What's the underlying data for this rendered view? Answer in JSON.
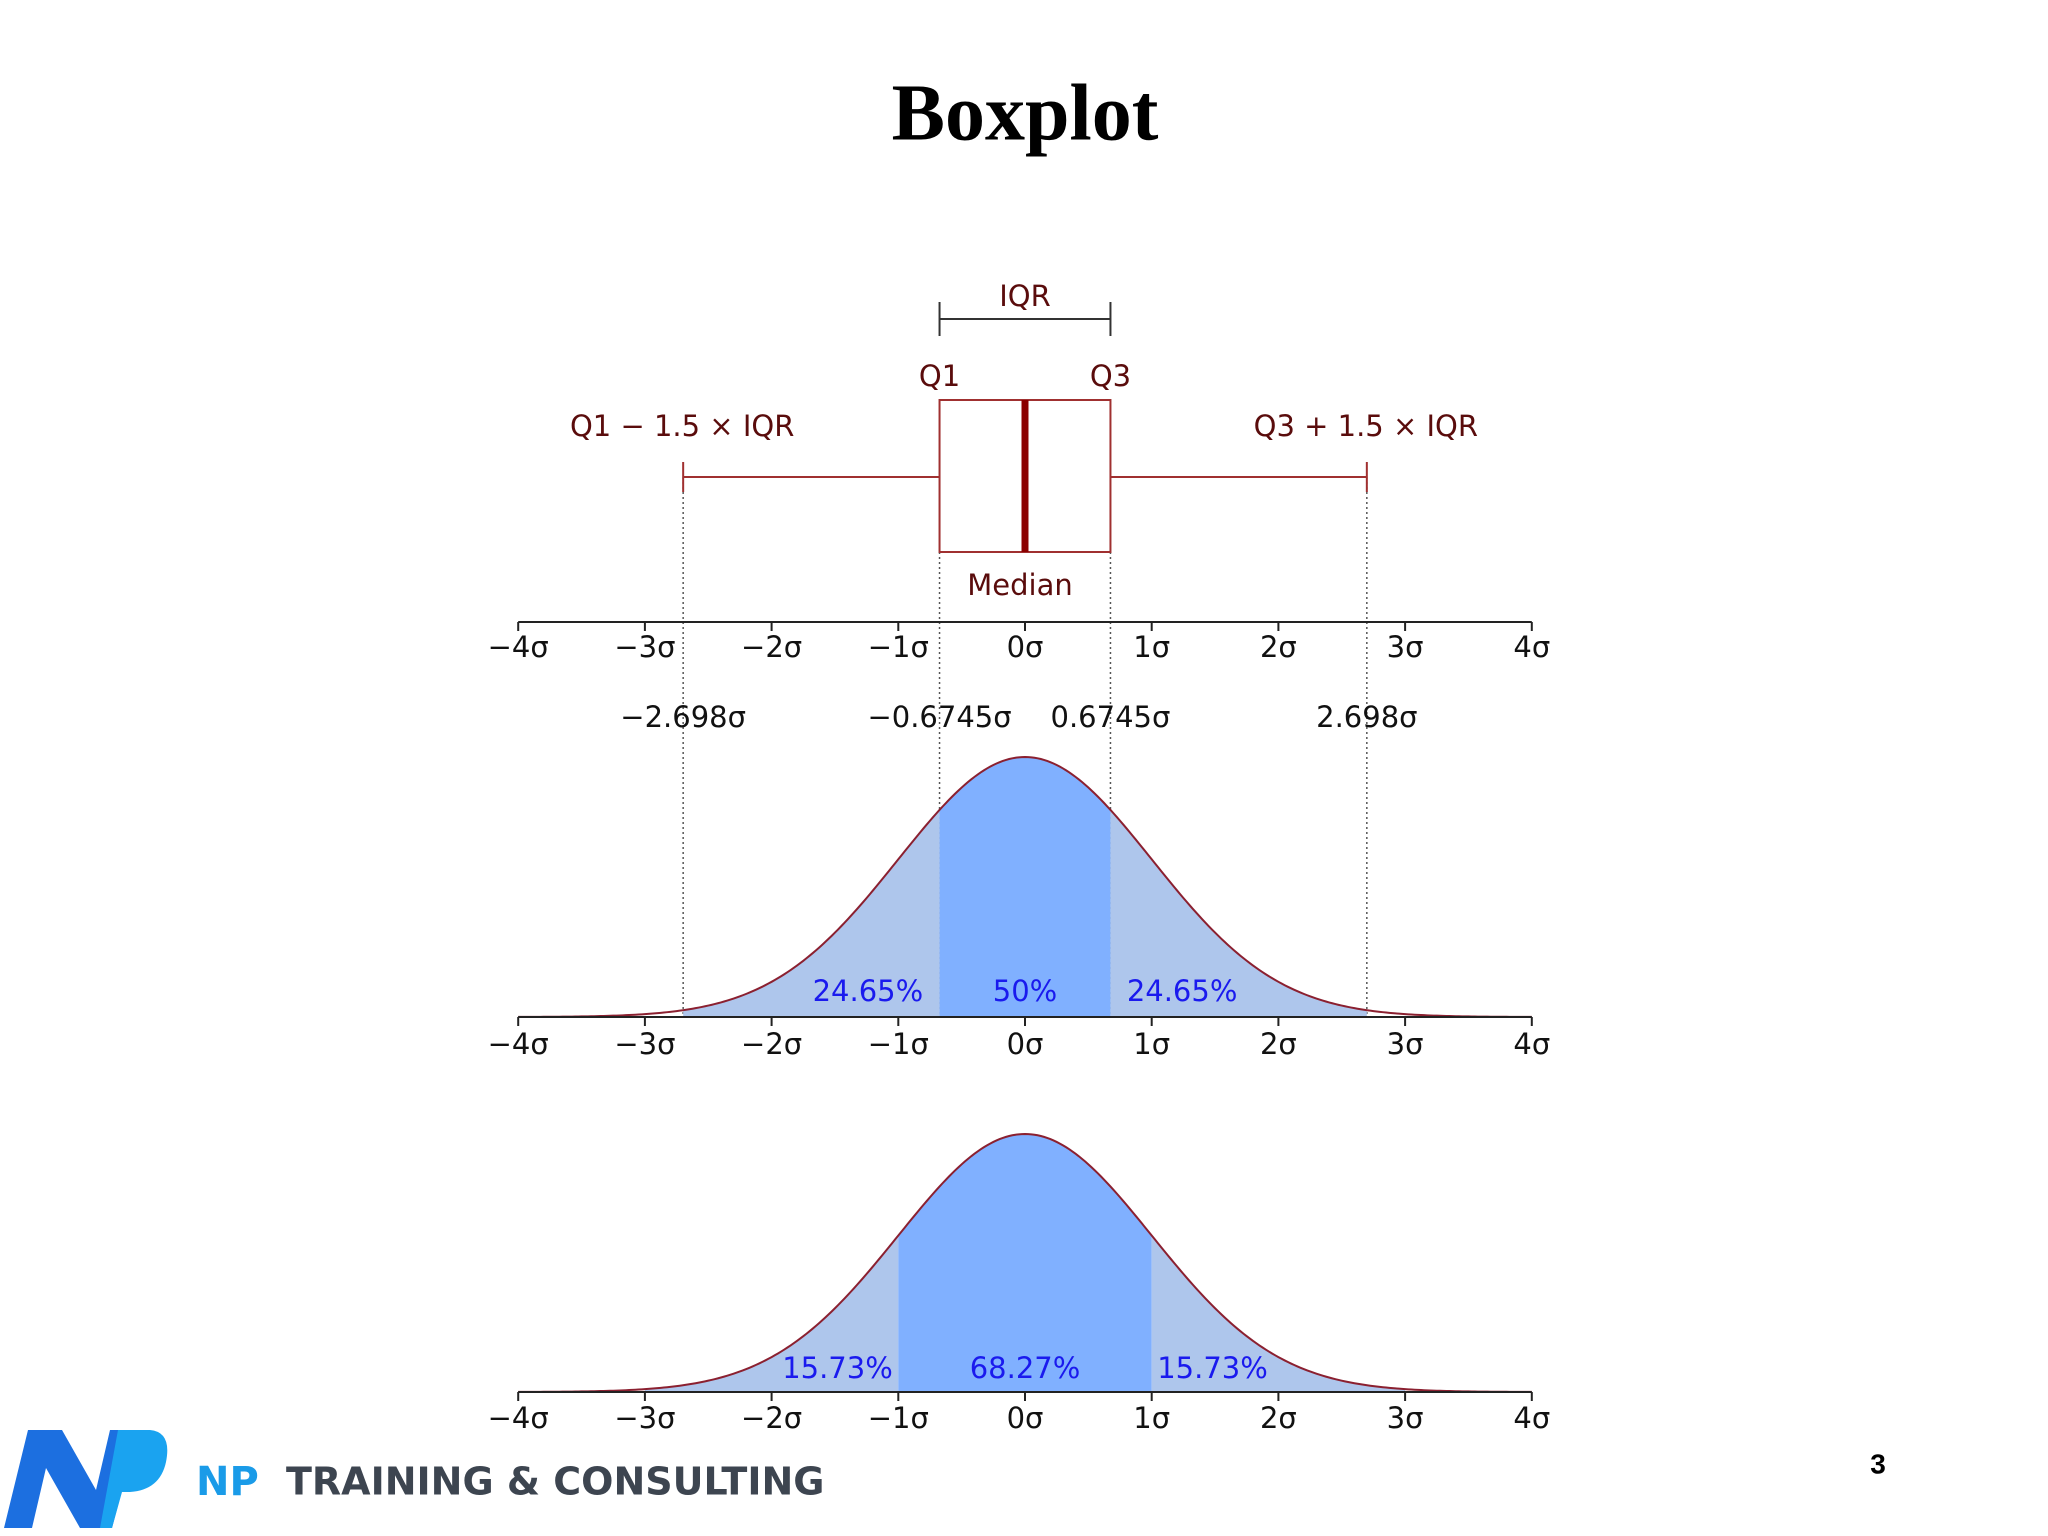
{
  "title": "Boxplot",
  "page_number": "3",
  "brand": "NP",
  "tagline": "TRAINING & CONSULTING",
  "boxplot": {
    "iqr_label": "IQR",
    "q1_label": "Q1",
    "q3_label": "Q3",
    "lower_fence_label": "Q1 − 1.5 × IQR",
    "upper_fence_label": "Q3 + 1.5 × IQR",
    "median_label": "Median"
  },
  "axis_ticks": [
    {
      "value": -4,
      "label": "−4σ"
    },
    {
      "value": -3,
      "label": "−3σ"
    },
    {
      "value": -2,
      "label": "−2σ"
    },
    {
      "value": -1,
      "label": "−1σ"
    },
    {
      "value": 0,
      "label": "0σ"
    },
    {
      "value": 1,
      "label": "1σ"
    },
    {
      "value": 2,
      "label": "2σ"
    },
    {
      "value": 3,
      "label": "3σ"
    },
    {
      "value": 4,
      "label": "4σ"
    }
  ],
  "markers": [
    {
      "value": -2.698,
      "label": "−2.698σ"
    },
    {
      "value": -0.6745,
      "label": "−0.6745σ"
    },
    {
      "value": 0.6745,
      "label": "0.6745σ"
    },
    {
      "value": 2.698,
      "label": "2.698σ"
    }
  ],
  "middle_regions": [
    "24.65%",
    "50%",
    "24.65%"
  ],
  "bottom_regions": [
    "15.73%",
    "68.27%",
    "15.73%"
  ]
}
